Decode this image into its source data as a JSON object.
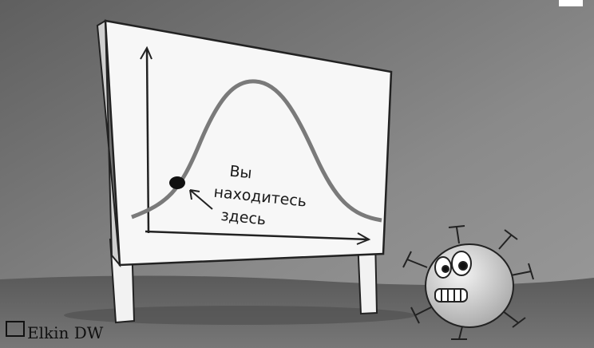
{
  "annotation": {
    "lines": [
      "Вы",
      "находитесь",
      "здесь"
    ]
  },
  "signature": "Elkin DW"
}
